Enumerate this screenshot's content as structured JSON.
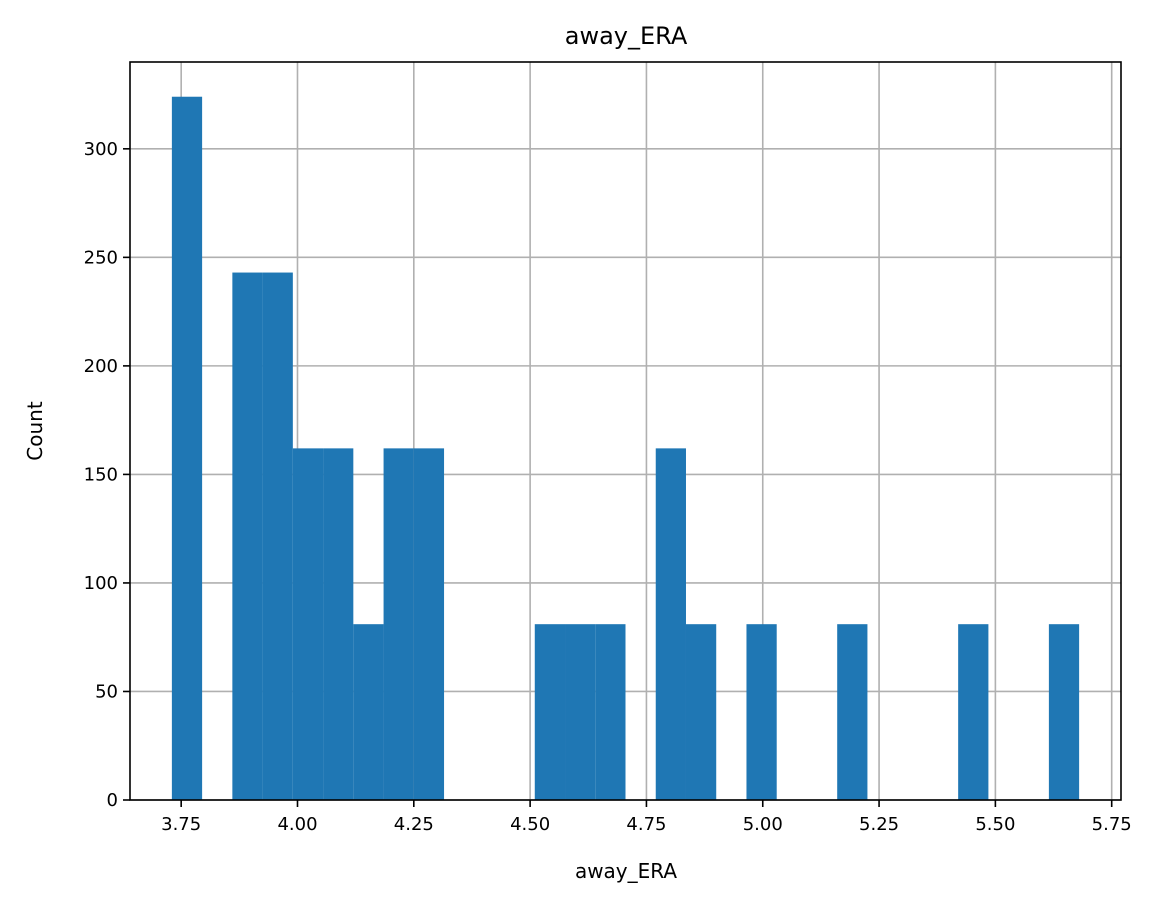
{
  "chart_data": {
    "type": "bar",
    "title": "away_ERA",
    "xlabel": "away_ERA",
    "ylabel": "Count",
    "xlim": [
      3.64,
      5.77
    ],
    "ylim": [
      0,
      340
    ],
    "xticks": [
      3.75,
      4.0,
      4.25,
      4.5,
      4.75,
      5.0,
      5.25,
      5.5,
      5.75
    ],
    "xtick_labels": [
      "3.75",
      "4.00",
      "4.25",
      "4.50",
      "4.75",
      "5.00",
      "5.25",
      "5.50",
      "5.75"
    ],
    "yticks": [
      0,
      50,
      100,
      150,
      200,
      250,
      300
    ],
    "ytick_labels": [
      "0",
      "50",
      "100",
      "150",
      "200",
      "250",
      "300"
    ],
    "grid": true,
    "bar_color": "#1f77b4",
    "bins": [
      {
        "x0": 3.73,
        "x1": 3.795,
        "count": 324
      },
      {
        "x0": 3.86,
        "x1": 3.925,
        "count": 243
      },
      {
        "x0": 3.925,
        "x1": 3.99,
        "count": 243
      },
      {
        "x0": 3.99,
        "x1": 4.055,
        "count": 162
      },
      {
        "x0": 4.055,
        "x1": 4.12,
        "count": 162
      },
      {
        "x0": 4.12,
        "x1": 4.185,
        "count": 81
      },
      {
        "x0": 4.185,
        "x1": 4.25,
        "count": 162
      },
      {
        "x0": 4.25,
        "x1": 4.315,
        "count": 162
      },
      {
        "x0": 4.51,
        "x1": 4.575,
        "count": 81
      },
      {
        "x0": 4.575,
        "x1": 4.64,
        "count": 81
      },
      {
        "x0": 4.64,
        "x1": 4.705,
        "count": 81
      },
      {
        "x0": 4.77,
        "x1": 4.835,
        "count": 162
      },
      {
        "x0": 4.835,
        "x1": 4.9,
        "count": 81
      },
      {
        "x0": 4.965,
        "x1": 5.03,
        "count": 81
      },
      {
        "x0": 5.16,
        "x1": 5.225,
        "count": 81
      },
      {
        "x0": 5.42,
        "x1": 5.485,
        "count": 81
      },
      {
        "x0": 5.615,
        "x1": 5.68,
        "count": 81
      }
    ]
  }
}
